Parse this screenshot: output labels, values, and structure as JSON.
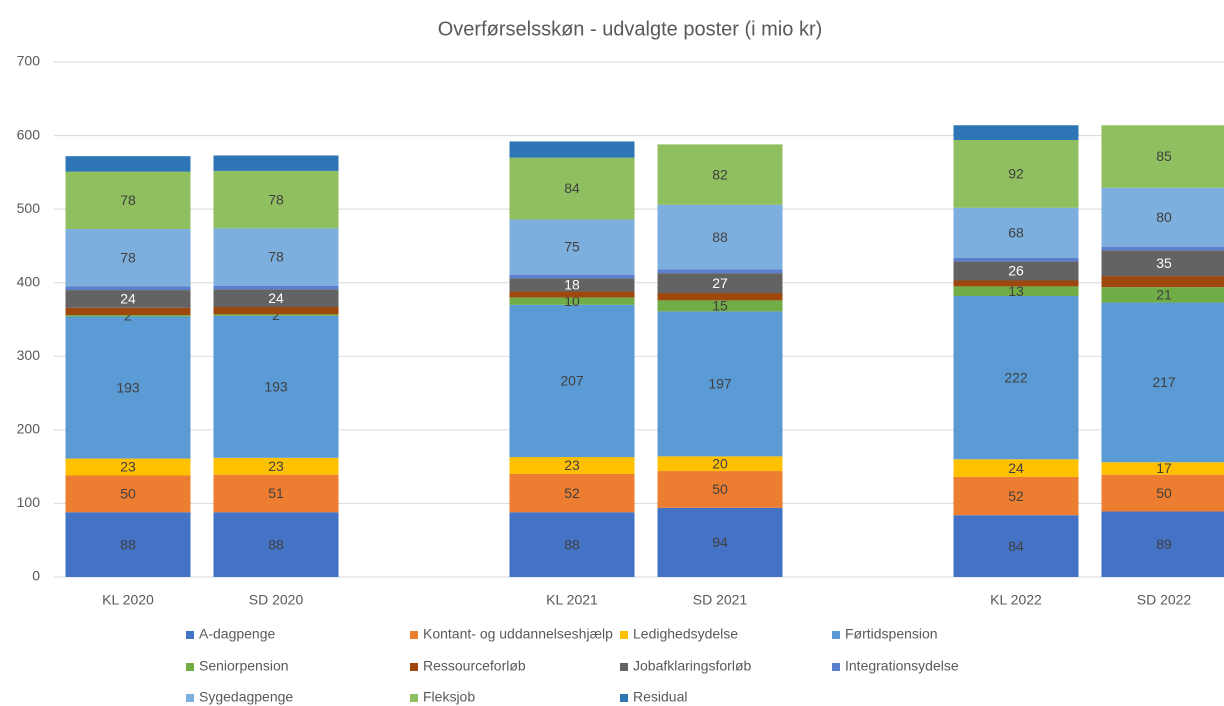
{
  "chart_data": {
    "type": "stacked_bar",
    "title": "Overførselsskøn  - udvalgte poster (i mio kr)",
    "categories": [
      "KL 2020",
      "SD 2020",
      null,
      "KL 2021",
      "SD 2021",
      null,
      "KL 2022",
      "SD 2022"
    ],
    "ylim": [
      0,
      700
    ],
    "yticks": [
      0,
      100,
      200,
      300,
      400,
      500,
      600,
      700
    ],
    "grid": true,
    "legend": "bottom",
    "series": [
      {
        "name": "A-dagpenge",
        "color": "#4472c4",
        "data_labels": true,
        "values": [
          88,
          88,
          null,
          88,
          94,
          null,
          84,
          89
        ]
      },
      {
        "name": "Kontant- og uddannelseshjælp",
        "color": "#ed7d31",
        "data_labels": true,
        "values": [
          50,
          51,
          null,
          52,
          50,
          null,
          52,
          50
        ]
      },
      {
        "name": "Ledighedsydelse",
        "color": "#ffc000",
        "data_labels": true,
        "values": [
          23,
          23,
          null,
          23,
          20,
          null,
          24,
          17
        ]
      },
      {
        "name": "Førtidspension",
        "color": "#5b9bd5",
        "data_labels": true,
        "values": [
          193,
          193,
          null,
          207,
          197,
          null,
          222,
          217
        ]
      },
      {
        "name": "Seniorpension",
        "color": "#70ad47",
        "data_labels": true,
        "values": [
          2,
          2,
          null,
          10,
          15,
          null,
          13,
          21
        ]
      },
      {
        "name": "Ressourceforløb",
        "color": "#9e480e",
        "data_labels": false,
        "values": [
          10,
          10,
          null,
          8,
          10,
          null,
          8,
          15
        ]
      },
      {
        "name": "Jobafklaringsforløb",
        "color": "#636363",
        "data_labels": true,
        "values": [
          24,
          24,
          null,
          18,
          27,
          null,
          26,
          35
        ]
      },
      {
        "name": "Integrationsydelse",
        "color": "#5a7ed0",
        "data_labels": false,
        "values": [
          5,
          5,
          null,
          5,
          5,
          null,
          5,
          5
        ]
      },
      {
        "name": "Sygedagpenge",
        "color": "#7cafdd",
        "data_labels": true,
        "values": [
          78,
          78,
          null,
          75,
          88,
          null,
          68,
          80
        ]
      },
      {
        "name": "Fleksjob",
        "color": "#8fbf5f",
        "data_labels": true,
        "values": [
          78,
          78,
          null,
          84,
          82,
          null,
          92,
          85
        ]
      },
      {
        "name": "Residual",
        "color": "#2e75b6",
        "data_labels": false,
        "values": [
          21,
          21,
          null,
          22,
          0,
          null,
          20,
          0
        ]
      }
    ]
  }
}
